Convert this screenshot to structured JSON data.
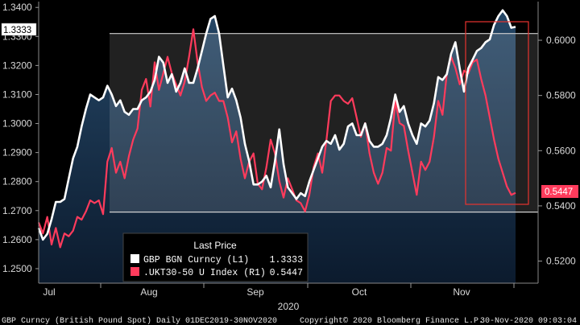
{
  "chart_data": {
    "type": "line",
    "footer": {
      "left": "GBP Curncy (British Pound Spot)  Daily 01DEC2019-30NOV2020",
      "center": "Copyright© 2020 Bloomberg Finance L.P.",
      "right": "30-Nov-2020 09:03:04"
    },
    "x_axis": {
      "months": [
        "Jul",
        "Aug",
        "Sep",
        "Oct",
        "Nov"
      ],
      "year": "2020"
    },
    "y_left": {
      "ticks": [
        "1.3400",
        "1.3300",
        "1.3200",
        "1.3100",
        "1.3000",
        "1.2900",
        "1.2800",
        "1.2700",
        "1.2600",
        "1.2500"
      ],
      "range": [
        1.245,
        1.342
      ]
    },
    "y_right": {
      "ticks": [
        "0.6000",
        "0.5800",
        "0.5600",
        "0.5400",
        "0.5200"
      ],
      "range": [
        0.512,
        0.614
      ]
    },
    "legend": {
      "title": "Last Price",
      "items": [
        {
          "label": "GBP BGN Curncy  (L1)",
          "value": "1.3333",
          "color": "#ffffff"
        },
        {
          "label": ".UKT30-50 U Index  (R1)",
          "value": "0.5447",
          "color": "#ff3b5c"
        }
      ]
    },
    "last_value_tags": {
      "left": "1.3333",
      "right": "0.5447"
    },
    "colors": {
      "gbp": "#ffffff",
      "ukt": "#ff3b5c",
      "channel_line": "#d0d0d0",
      "area_fill": "#1a3350"
    },
    "series": [
      {
        "name": "GBP BGN Curncy (L1)",
        "axis": "left",
        "values": [
          1.264,
          1.26,
          1.262,
          1.267,
          1.273,
          1.273,
          1.274,
          1.281,
          1.288,
          1.292,
          1.299,
          1.305,
          1.31,
          1.309,
          1.308,
          1.309,
          1.313,
          1.31,
          1.306,
          1.308,
          1.304,
          1.303,
          1.305,
          1.305,
          1.308,
          1.309,
          1.311,
          1.315,
          1.323,
          1.321,
          1.314,
          1.317,
          1.311,
          1.314,
          1.319,
          1.314,
          1.314,
          1.319,
          1.325,
          1.331,
          1.336,
          1.337,
          1.331,
          1.32,
          1.309,
          1.312,
          1.308,
          1.302,
          1.293,
          1.287,
          1.279,
          1.279,
          1.28,
          1.282,
          1.278,
          1.287,
          1.298,
          1.286,
          1.278,
          1.276,
          1.274,
          1.276,
          1.275,
          1.28,
          1.284,
          1.288,
          1.292,
          1.294,
          1.293,
          1.296,
          1.291,
          1.293,
          1.299,
          1.3,
          1.296,
          1.296,
          1.3,
          1.294,
          1.292,
          1.292,
          1.293,
          1.296,
          1.302,
          1.31,
          1.304,
          1.306,
          1.3,
          1.296,
          1.293,
          1.3,
          1.299,
          1.301,
          1.307,
          1.316,
          1.315,
          1.317,
          1.324,
          1.328,
          1.319,
          1.311,
          1.319,
          1.322,
          1.325,
          1.326,
          1.328,
          1.329,
          1.334,
          1.337,
          1.339,
          1.337,
          1.333,
          1.3333
        ]
      },
      {
        "name": ".UKT30-50 U Index (R1)",
        "axis": "right",
        "values": [
          0.534,
          0.53,
          0.536,
          0.526,
          0.532,
          0.525,
          0.53,
          0.529,
          0.531,
          0.536,
          0.535,
          0.538,
          0.542,
          0.541,
          0.542,
          0.537,
          0.556,
          0.561,
          0.552,
          0.556,
          0.55,
          0.558,
          0.564,
          0.568,
          0.582,
          0.586,
          0.576,
          0.592,
          0.582,
          0.588,
          0.594,
          0.588,
          0.584,
          0.58,
          0.585,
          0.594,
          0.604,
          0.592,
          0.583,
          0.578,
          0.58,
          0.581,
          0.578,
          0.578,
          0.572,
          0.563,
          0.567,
          0.557,
          0.55,
          0.556,
          0.559,
          0.548,
          0.546,
          0.554,
          0.564,
          0.559,
          0.549,
          0.543,
          0.55,
          0.546,
          0.542,
          0.541,
          0.538,
          0.544,
          0.554,
          0.559,
          0.552,
          0.564,
          0.578,
          0.58,
          0.58,
          0.578,
          0.577,
          0.579,
          0.572,
          0.565,
          0.57,
          0.559,
          0.552,
          0.548,
          0.552,
          0.561,
          0.56,
          0.578,
          0.57,
          0.569,
          0.56,
          0.552,
          0.544,
          0.556,
          0.553,
          0.556,
          0.565,
          0.578,
          0.573,
          0.588,
          0.594,
          0.59,
          0.584,
          0.589,
          0.588,
          0.592,
          0.593,
          0.586,
          0.58,
          0.572,
          0.564,
          0.557,
          0.552,
          0.547,
          0.544,
          0.5447
        ]
      }
    ]
  }
}
